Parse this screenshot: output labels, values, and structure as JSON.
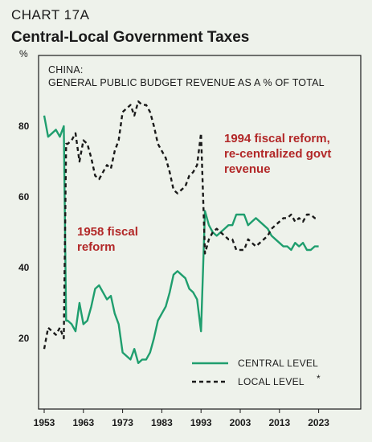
{
  "chart_data": {
    "type": "line",
    "chart_id": "CHART 17A",
    "title": "Central-Local Government Taxes",
    "subtitle_lines": [
      "CHINA:",
      "GENERAL PUBLIC BUDGET REVENUE AS A % OF TOTAL"
    ],
    "ylabel": "%",
    "ylim": [
      0,
      90
    ],
    "xlim": [
      1953,
      2025
    ],
    "yticks": [
      20,
      40,
      60,
      80
    ],
    "xticks": [
      1953,
      1963,
      1973,
      1983,
      1993,
      2003,
      2013,
      2023
    ],
    "grid": false,
    "legend_position": "bottom-right",
    "colors": {
      "central": "#1f9e6e",
      "local": "#1a1a1a",
      "annotation": "#b22828"
    },
    "annotations": [
      {
        "lines": [
          "1958 fiscal",
          "reform"
        ]
      },
      {
        "lines": [
          "1994 fiscal reform,",
          "re-centralized govt",
          "revenue"
        ]
      }
    ],
    "series": [
      {
        "name": "CENTRAL LEVEL",
        "style": "solid",
        "points": [
          [
            1953,
            83
          ],
          [
            1954,
            77
          ],
          [
            1955,
            78
          ],
          [
            1956,
            79
          ],
          [
            1957,
            77
          ],
          [
            1958,
            80
          ],
          [
            1958.6,
            25
          ],
          [
            1959,
            25
          ],
          [
            1960,
            24
          ],
          [
            1961,
            22
          ],
          [
            1962,
            30
          ],
          [
            1963,
            24
          ],
          [
            1964,
            25
          ],
          [
            1965,
            29
          ],
          [
            1966,
            34
          ],
          [
            1967,
            35
          ],
          [
            1968,
            33
          ],
          [
            1969,
            31
          ],
          [
            1970,
            32
          ],
          [
            1971,
            27
          ],
          [
            1972,
            24
          ],
          [
            1973,
            16
          ],
          [
            1974,
            15
          ],
          [
            1975,
            14
          ],
          [
            1976,
            17
          ],
          [
            1977,
            13
          ],
          [
            1978,
            14
          ],
          [
            1979,
            14
          ],
          [
            1980,
            16
          ],
          [
            1981,
            20
          ],
          [
            1982,
            25
          ],
          [
            1983,
            27
          ],
          [
            1984,
            29
          ],
          [
            1985,
            33
          ],
          [
            1986,
            38
          ],
          [
            1987,
            39
          ],
          [
            1988,
            38
          ],
          [
            1989,
            37
          ],
          [
            1990,
            34
          ],
          [
            1991,
            33
          ],
          [
            1992,
            31
          ],
          [
            1993,
            22
          ],
          [
            1994,
            56
          ],
          [
            1995,
            52
          ],
          [
            1996,
            50
          ],
          [
            1997,
            49
          ],
          [
            1998,
            50
          ],
          [
            1999,
            51
          ],
          [
            2000,
            52
          ],
          [
            2001,
            52
          ],
          [
            2002,
            55
          ],
          [
            2003,
            55
          ],
          [
            2004,
            55
          ],
          [
            2005,
            52
          ],
          [
            2006,
            53
          ],
          [
            2007,
            54
          ],
          [
            2008,
            53
          ],
          [
            2009,
            52
          ],
          [
            2010,
            51
          ],
          [
            2011,
            49
          ],
          [
            2012,
            48
          ],
          [
            2013,
            47
          ],
          [
            2014,
            46
          ],
          [
            2015,
            46
          ],
          [
            2016,
            45
          ],
          [
            2017,
            47
          ],
          [
            2018,
            46
          ],
          [
            2019,
            47
          ],
          [
            2020,
            45
          ],
          [
            2021,
            45
          ],
          [
            2022,
            46
          ],
          [
            2023,
            46
          ]
        ]
      },
      {
        "name": "LOCAL LEVEL",
        "style": "dashed",
        "points": [
          [
            1953,
            17
          ],
          [
            1954,
            23
          ],
          [
            1955,
            22
          ],
          [
            1956,
            21
          ],
          [
            1957,
            23
          ],
          [
            1958,
            20
          ],
          [
            1958.6,
            75
          ],
          [
            1959,
            75
          ],
          [
            1960,
            76
          ],
          [
            1961,
            78
          ],
          [
            1962,
            70
          ],
          [
            1963,
            76
          ],
          [
            1964,
            75
          ],
          [
            1965,
            71
          ],
          [
            1966,
            66
          ],
          [
            1967,
            65
          ],
          [
            1968,
            67
          ],
          [
            1969,
            69
          ],
          [
            1970,
            68
          ],
          [
            1971,
            73
          ],
          [
            1972,
            76
          ],
          [
            1973,
            84
          ],
          [
            1974,
            85
          ],
          [
            1975,
            86
          ],
          [
            1976,
            83
          ],
          [
            1977,
            87
          ],
          [
            1978,
            86
          ],
          [
            1979,
            86
          ],
          [
            1980,
            84
          ],
          [
            1981,
            80
          ],
          [
            1982,
            75
          ],
          [
            1983,
            73
          ],
          [
            1984,
            71
          ],
          [
            1985,
            67
          ],
          [
            1986,
            62
          ],
          [
            1987,
            61
          ],
          [
            1988,
            62
          ],
          [
            1989,
            63
          ],
          [
            1990,
            66
          ],
          [
            1991,
            67
          ],
          [
            1992,
            69
          ],
          [
            1993,
            78
          ],
          [
            1994,
            44
          ],
          [
            1995,
            48
          ],
          [
            1996,
            50
          ],
          [
            1997,
            51
          ],
          [
            1998,
            50
          ],
          [
            1999,
            49
          ],
          [
            2000,
            48
          ],
          [
            2001,
            48
          ],
          [
            2002,
            45
          ],
          [
            2003,
            45
          ],
          [
            2004,
            45
          ],
          [
            2005,
            48
          ],
          [
            2006,
            47
          ],
          [
            2007,
            46
          ],
          [
            2008,
            47
          ],
          [
            2009,
            48
          ],
          [
            2010,
            49
          ],
          [
            2011,
            51
          ],
          [
            2012,
            52
          ],
          [
            2013,
            53
          ],
          [
            2014,
            54
          ],
          [
            2015,
            54
          ],
          [
            2016,
            55
          ],
          [
            2017,
            53
          ],
          [
            2018,
            54
          ],
          [
            2019,
            53
          ],
          [
            2020,
            55
          ],
          [
            2021,
            55
          ],
          [
            2022,
            54
          ],
          [
            2023,
            54
          ]
        ]
      }
    ]
  }
}
